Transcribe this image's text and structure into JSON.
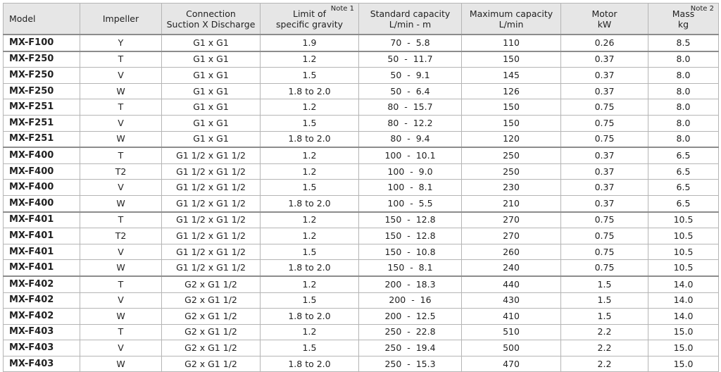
{
  "table": {
    "columns": [
      {
        "lines": [
          "Model"
        ]
      },
      {
        "lines": [
          "Impeller"
        ]
      },
      {
        "lines": [
          "Connection",
          "Suction X Discharge"
        ]
      },
      {
        "lines": [
          "Limit of",
          "specific gravity"
        ],
        "note": "Note 1"
      },
      {
        "lines": [
          "Standard capacity",
          "L/min - m"
        ]
      },
      {
        "lines": [
          "Maximum capacity",
          "L/min"
        ]
      },
      {
        "lines": [
          "Motor",
          "kW"
        ]
      },
      {
        "lines": [
          "Mass",
          "kg"
        ],
        "note": "Note 2"
      }
    ],
    "rows": [
      [
        "MX-F100",
        "Y",
        "G1 x G1",
        "1.9",
        "70  -  5.8",
        "110",
        "0.26",
        "8.5"
      ],
      [
        "MX-F250",
        "T",
        "G1 x G1",
        "1.2",
        "50  -  11.7",
        "150",
        "0.37",
        "8.0"
      ],
      [
        "MX-F250",
        "V",
        "G1 x G1",
        "1.5",
        "50  -  9.1",
        "145",
        "0.37",
        "8.0"
      ],
      [
        "MX-F250",
        "W",
        "G1 x G1",
        "1.8 to 2.0",
        "50  -  6.4",
        "126",
        "0.37",
        "8.0"
      ],
      [
        "MX-F251",
        "T",
        "G1 x G1",
        "1.2",
        "80  -  15.7",
        "150",
        "0.75",
        "8.0"
      ],
      [
        "MX-F251",
        "V",
        "G1 x G1",
        "1.5",
        "80  -  12.2",
        "150",
        "0.75",
        "8.0"
      ],
      [
        "MX-F251",
        "W",
        "G1 x G1",
        "1.8 to 2.0",
        "80  -  9.4",
        "120",
        "0.75",
        "8.0"
      ],
      [
        "MX-F400",
        "T",
        "G1 1/2 x G1 1/2",
        "1.2",
        "100  -  10.1",
        "250",
        "0.37",
        "6.5"
      ],
      [
        "MX-F400",
        "T2",
        "G1 1/2 x G1 1/2",
        "1.2",
        "100  -  9.0",
        "250",
        "0.37",
        "6.5"
      ],
      [
        "MX-F400",
        "V",
        "G1 1/2 x G1 1/2",
        "1.5",
        "100  -  8.1",
        "230",
        "0.37",
        "6.5"
      ],
      [
        "MX-F400",
        "W",
        "G1 1/2 x G1 1/2",
        "1.8 to 2.0",
        "100  -  5.5",
        "210",
        "0.37",
        "6.5"
      ],
      [
        "MX-F401",
        "T",
        "G1 1/2 x G1 1/2",
        "1.2",
        "150  -  12.8",
        "270",
        "0.75",
        "10.5"
      ],
      [
        "MX-F401",
        "T2",
        "G1 1/2 x G1 1/2",
        "1.2",
        "150  -  12.8",
        "270",
        "0.75",
        "10.5"
      ],
      [
        "MX-F401",
        "V",
        "G1 1/2 x G1 1/2",
        "1.5",
        "150  -  10.8",
        "260",
        "0.75",
        "10.5"
      ],
      [
        "MX-F401",
        "W",
        "G1 1/2 x G1 1/2",
        "1.8 to 2.0",
        "150  -  8.1",
        "240",
        "0.75",
        "10.5"
      ],
      [
        "MX-F402",
        "T",
        "G2 x G1 1/2",
        "1.2",
        "200  -  18.3",
        "440",
        "1.5",
        "14.0"
      ],
      [
        "MX-F402",
        "V",
        "G2 x G1 1/2",
        "1.5",
        "200  -  16",
        "430",
        "1.5",
        "14.0"
      ],
      [
        "MX-F402",
        "W",
        "G2 x G1 1/2",
        "1.8 to 2.0",
        "200  -  12.5",
        "410",
        "1.5",
        "14.0"
      ],
      [
        "MX-F403",
        "T",
        "G2 x G1 1/2",
        "1.2",
        "250  -  22.8",
        "510",
        "2.2",
        "15.0"
      ],
      [
        "MX-F403",
        "V",
        "G2 x G1 1/2",
        "1.5",
        "250  -  19.4",
        "500",
        "2.2",
        "15.0"
      ],
      [
        "MX-F403",
        "W",
        "G2 x G1 1/2",
        "1.8 to 2.0",
        "250  -  15.3",
        "470",
        "2.2",
        "15.0"
      ]
    ]
  }
}
